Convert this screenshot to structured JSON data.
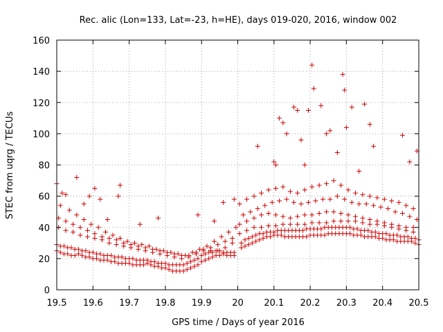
{
  "chart_data": {
    "type": "scatter",
    "title": "Rec. alic (Lon=133, Lat=-23, h=HE), days 019-020, 2016, window 002",
    "xlabel": "GPS time / Days of year 2016",
    "ylabel": "STEC from uqrg / TECUs",
    "xlim": [
      19.5,
      20.5
    ],
    "ylim": [
      0,
      160
    ],
    "xticks": [
      19.5,
      19.6,
      19.7,
      19.8,
      19.9,
      20.0,
      20.1,
      20.2,
      20.3,
      20.4,
      20.5
    ],
    "xtick_labels": [
      "19.5",
      "19.6",
      "19.7",
      "19.8",
      "19.9",
      "20",
      "20.1",
      "20.2",
      "20.3",
      "20.4",
      "20.5"
    ],
    "yticks": [
      0,
      20,
      40,
      60,
      80,
      100,
      120,
      140,
      160
    ],
    "ytick_labels": [
      "0",
      "20",
      "40",
      "60",
      "80",
      "100",
      "120",
      "140",
      "160"
    ],
    "grid": true,
    "marker": "plus",
    "color": "#cc0000",
    "series": [
      {
        "name": "STEC",
        "x": [
          19.5,
          19.51,
          19.52,
          19.53,
          19.54,
          19.55,
          19.56,
          19.57,
          19.58,
          19.59,
          19.6,
          19.61,
          19.62,
          19.63,
          19.64,
          19.65,
          19.66,
          19.67,
          19.68,
          19.69,
          19.7,
          19.71,
          19.72,
          19.73,
          19.74,
          19.75,
          19.76,
          19.77,
          19.78,
          19.79,
          19.8,
          19.81,
          19.82,
          19.83,
          19.84,
          19.85,
          19.86,
          19.87,
          19.88,
          19.89,
          19.9,
          19.91,
          19.92,
          19.93,
          19.94,
          19.95,
          19.96,
          19.97,
          19.98,
          19.99,
          19.5,
          19.51,
          19.52,
          19.53,
          19.54,
          19.55,
          19.56,
          19.57,
          19.58,
          19.59,
          19.6,
          19.61,
          19.62,
          19.63,
          19.64,
          19.65,
          19.66,
          19.67,
          19.68,
          19.69,
          19.7,
          19.71,
          19.72,
          19.73,
          19.74,
          19.75,
          19.76,
          19.77,
          19.78,
          19.79,
          19.8,
          19.81,
          19.82,
          19.83,
          19.84,
          19.85,
          19.86,
          19.87,
          19.88,
          19.89,
          19.9,
          19.91,
          19.92,
          19.93,
          19.94,
          19.95,
          19.96,
          19.97,
          19.98,
          19.99,
          19.505,
          19.525,
          19.545,
          19.565,
          19.585,
          19.605,
          19.625,
          19.645,
          19.665,
          19.685,
          19.705,
          19.725,
          19.745,
          19.765,
          19.785,
          19.805,
          19.825,
          19.845,
          19.865,
          19.885,
          19.905,
          19.925,
          19.945,
          19.965,
          19.985,
          19.505,
          19.525,
          19.545,
          19.565,
          19.585,
          19.605,
          19.625,
          19.645,
          19.665,
          19.685,
          19.705,
          19.725,
          19.745,
          19.765,
          19.785,
          19.805,
          19.825,
          19.845,
          19.865,
          19.885,
          19.905,
          19.925,
          19.945,
          19.965,
          19.985,
          19.51,
          19.535,
          19.555,
          19.575,
          19.595,
          19.615,
          19.635,
          19.655,
          19.675,
          19.695,
          19.715,
          19.735,
          19.755,
          19.775,
          19.795,
          19.815,
          19.835,
          19.855,
          19.875,
          19.895,
          19.915,
          19.935,
          19.955,
          19.975,
          19.995,
          19.5,
          19.515,
          19.525,
          19.555,
          19.575,
          19.59,
          19.605,
          19.62,
          19.64,
          19.67,
          19.675,
          19.73,
          19.78,
          19.89,
          19.935,
          19.96,
          19.99,
          20.01,
          20.02,
          20.03,
          20.04,
          20.05,
          20.06,
          20.07,
          20.08,
          20.09,
          20.1,
          20.11,
          20.12,
          20.13,
          20.14,
          20.15,
          20.16,
          20.17,
          20.18,
          20.19,
          20.2,
          20.21,
          20.22,
          20.23,
          20.24,
          20.25,
          20.26,
          20.27,
          20.28,
          20.29,
          20.3,
          20.31,
          20.32,
          20.33,
          20.34,
          20.35,
          20.36,
          20.37,
          20.38,
          20.39,
          20.4,
          20.41,
          20.42,
          20.43,
          20.44,
          20.45,
          20.46,
          20.47,
          20.48,
          20.49,
          20.5,
          20.01,
          20.02,
          20.03,
          20.04,
          20.05,
          20.06,
          20.07,
          20.08,
          20.09,
          20.1,
          20.11,
          20.12,
          20.13,
          20.14,
          20.15,
          20.16,
          20.17,
          20.18,
          20.19,
          20.2,
          20.21,
          20.22,
          20.23,
          20.24,
          20.25,
          20.26,
          20.27,
          20.28,
          20.29,
          20.3,
          20.31,
          20.32,
          20.33,
          20.34,
          20.35,
          20.36,
          20.37,
          20.38,
          20.39,
          20.4,
          20.41,
          20.42,
          20.43,
          20.44,
          20.45,
          20.46,
          20.47,
          20.48,
          20.49,
          20.5,
          20.005,
          20.025,
          20.045,
          20.065,
          20.085,
          20.105,
          20.125,
          20.145,
          20.165,
          20.185,
          20.205,
          20.225,
          20.245,
          20.265,
          20.285,
          20.305,
          20.325,
          20.345,
          20.365,
          20.385,
          20.405,
          20.425,
          20.445,
          20.465,
          20.485,
          20.005,
          20.025,
          20.045,
          20.065,
          20.085,
          20.105,
          20.125,
          20.145,
          20.165,
          20.185,
          20.205,
          20.225,
          20.245,
          20.265,
          20.285,
          20.305,
          20.325,
          20.345,
          20.365,
          20.385,
          20.405,
          20.425,
          20.445,
          20.465,
          20.485,
          20.015,
          20.035,
          20.055,
          20.075,
          20.095,
          20.115,
          20.135,
          20.155,
          20.175,
          20.195,
          20.215,
          20.235,
          20.255,
          20.275,
          20.295,
          20.315,
          20.335,
          20.355,
          20.375,
          20.395,
          20.415,
          20.435,
          20.455,
          20.475,
          20.495,
          20.005,
          20.025,
          20.045,
          20.065,
          20.085,
          20.105,
          20.125,
          20.145,
          20.165,
          20.185,
          20.205,
          20.225,
          20.245,
          20.265,
          20.285,
          20.305,
          20.325,
          20.345,
          20.365,
          20.385,
          20.405,
          20.425,
          20.445,
          20.465,
          20.485,
          20.055,
          20.1,
          20.105,
          20.115,
          20.125,
          20.135,
          20.155,
          20.165,
          20.175,
          20.185,
          20.195,
          20.205,
          20.21,
          20.23,
          20.245,
          20.255,
          20.275,
          20.29,
          20.295,
          20.3,
          20.315,
          20.335,
          20.35,
          20.365,
          20.375,
          20.455,
          20.475,
          20.495
        ],
        "y": [
          25,
          24,
          23,
          23,
          22,
          22,
          23,
          22,
          21,
          21,
          20,
          20,
          19,
          19,
          19,
          18,
          18,
          17,
          17,
          17,
          17,
          16,
          16,
          16,
          16,
          17,
          16,
          15,
          15,
          14,
          14,
          13,
          12,
          12,
          12,
          12,
          13,
          14,
          15,
          16,
          18,
          19,
          20,
          21,
          22,
          22,
          23,
          22,
          22,
          22,
          29,
          28,
          28,
          27,
          27,
          26,
          26,
          25,
          25,
          24,
          24,
          23,
          23,
          22,
          22,
          22,
          21,
          21,
          21,
          20,
          20,
          20,
          19,
          19,
          19,
          19,
          18,
          18,
          17,
          17,
          17,
          16,
          16,
          16,
          16,
          16,
          17,
          18,
          19,
          20,
          22,
          23,
          24,
          24,
          25,
          25,
          24,
          24,
          24,
          24,
          40,
          38,
          37,
          35,
          34,
          33,
          32,
          30,
          29,
          28,
          27,
          26,
          25,
          24,
          23,
          22,
          21,
          20,
          22,
          24,
          26,
          25,
          25,
          27,
          30,
          46,
          44,
          42,
          40,
          38,
          36,
          34,
          33,
          32,
          30,
          29,
          28,
          27,
          26,
          25,
          24,
          23,
          22,
          21,
          23,
          25,
          27,
          29,
          31,
          33,
          54,
          51,
          48,
          45,
          42,
          40,
          37,
          35,
          33,
          31,
          30,
          29,
          28,
          26,
          25,
          24,
          23,
          22,
          24,
          26,
          28,
          31,
          34,
          37,
          40,
          68,
          62,
          61,
          72,
          55,
          60,
          65,
          58,
          45,
          60,
          67,
          42,
          46,
          48,
          44,
          56,
          58,
          27,
          28,
          29,
          30,
          31,
          32,
          33,
          34,
          34,
          35,
          35,
          35,
          34,
          34,
          34,
          34,
          34,
          34,
          34,
          35,
          35,
          35,
          35,
          35,
          36,
          36,
          36,
          36,
          36,
          36,
          36,
          35,
          35,
          35,
          34,
          34,
          34,
          34,
          33,
          33,
          32,
          32,
          32,
          31,
          31,
          31,
          31,
          31,
          30,
          29,
          30,
          32,
          33,
          34,
          35,
          36,
          36,
          37,
          37,
          37,
          38,
          38,
          38,
          38,
          38,
          38,
          38,
          38,
          39,
          39,
          39,
          39,
          39,
          40,
          40,
          40,
          40,
          40,
          40,
          40,
          40,
          39,
          39,
          38,
          38,
          38,
          37,
          37,
          36,
          36,
          36,
          35,
          35,
          35,
          34,
          34,
          34,
          33,
          33,
          32,
          36,
          38,
          40,
          40,
          41,
          41,
          42,
          42,
          42,
          42,
          43,
          43,
          43,
          44,
          44,
          44,
          44,
          43,
          42,
          42,
          41,
          40,
          39,
          38,
          37,
          42,
          44,
          46,
          48,
          49,
          48,
          47,
          46,
          47,
          48,
          48,
          49,
          50,
          50,
          49,
          48,
          47,
          46,
          45,
          44,
          43,
          42,
          41,
          40,
          40,
          48,
          50,
          52,
          54,
          56,
          57,
          58,
          56,
          55,
          56,
          57,
          58,
          58,
          60,
          58,
          56,
          55,
          55,
          54,
          53,
          52,
          50,
          49,
          47,
          45,
          55,
          58,
          60,
          62,
          64,
          65,
          66,
          63,
          62,
          64,
          66,
          67,
          68,
          70,
          67,
          64,
          62,
          61,
          60,
          59,
          58,
          57,
          56,
          54,
          52,
          92,
          82,
          80,
          110,
          107,
          100,
          117,
          115,
          96,
          80,
          115,
          144,
          129,
          118,
          100,
          102,
          88,
          138,
          128,
          104,
          117,
          76,
          119,
          106,
          92,
          99,
          82,
          89
        ]
      }
    ]
  }
}
